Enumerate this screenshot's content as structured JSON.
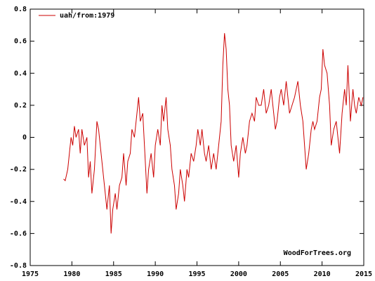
{
  "chart_data": {
    "type": "line",
    "series": [
      {
        "name": "uah/from:1979",
        "color": "#cc0000",
        "x": [
          1979.0,
          1979.2,
          1979.5,
          1979.7,
          1979.9,
          1980.1,
          1980.3,
          1980.5,
          1980.8,
          1981.0,
          1981.2,
          1981.5,
          1981.8,
          1982.0,
          1982.2,
          1982.4,
          1982.7,
          1983.0,
          1983.2,
          1983.5,
          1983.8,
          1984.0,
          1984.2,
          1984.5,
          1984.7,
          1984.9,
          1985.2,
          1985.4,
          1985.7,
          1986.0,
          1986.2,
          1986.5,
          1986.7,
          1987.0,
          1987.2,
          1987.5,
          1987.7,
          1988.0,
          1988.2,
          1988.5,
          1988.7,
          1989.0,
          1989.2,
          1989.5,
          1989.8,
          1990.0,
          1990.3,
          1990.6,
          1990.8,
          1991.0,
          1991.3,
          1991.5,
          1991.8,
          1992.0,
          1992.3,
          1992.5,
          1992.8,
          1993.0,
          1993.3,
          1993.5,
          1993.8,
          1994.0,
          1994.3,
          1994.6,
          1994.9,
          1995.1,
          1995.4,
          1995.6,
          1995.9,
          1996.1,
          1996.4,
          1996.7,
          1997.0,
          1997.3,
          1997.6,
          1997.9,
          1998.1,
          1998.3,
          1998.5,
          1998.7,
          1998.9,
          1999.1,
          1999.4,
          1999.7,
          2000.0,
          2000.2,
          2000.5,
          2000.8,
          2001.0,
          2001.3,
          2001.6,
          2001.9,
          2002.1,
          2002.4,
          2002.7,
          2003.0,
          2003.3,
          2003.6,
          2003.9,
          2004.1,
          2004.4,
          2004.6,
          2004.9,
          2005.1,
          2005.4,
          2005.7,
          2005.9,
          2006.1,
          2006.4,
          2006.7,
          2006.9,
          2007.1,
          2007.4,
          2007.7,
          2007.9,
          2008.1,
          2008.4,
          2008.7,
          2008.9,
          2009.1,
          2009.4,
          2009.7,
          2009.9,
          2010.1,
          2010.3,
          2010.6,
          2010.9,
          2011.1,
          2011.4,
          2011.7,
          2011.9,
          2012.1,
          2012.4,
          2012.7,
          2012.9,
          2013.1,
          2013.4,
          2013.7,
          2013.9,
          2014.1,
          2014.4,
          2014.7,
          2014.9
        ],
        "values": [
          -0.26,
          -0.27,
          -0.2,
          -0.1,
          0.0,
          -0.05,
          0.07,
          0.0,
          0.05,
          -0.1,
          0.05,
          -0.05,
          0.0,
          -0.25,
          -0.15,
          -0.35,
          -0.2,
          0.1,
          0.05,
          -0.1,
          -0.25,
          -0.35,
          -0.45,
          -0.3,
          -0.6,
          -0.45,
          -0.35,
          -0.45,
          -0.3,
          -0.25,
          -0.1,
          -0.3,
          -0.15,
          -0.1,
          0.05,
          0.0,
          0.1,
          0.25,
          0.1,
          0.15,
          -0.05,
          -0.35,
          -0.2,
          -0.1,
          -0.25,
          -0.05,
          0.05,
          -0.05,
          0.2,
          0.1,
          0.25,
          0.05,
          -0.05,
          -0.2,
          -0.3,
          -0.45,
          -0.35,
          -0.2,
          -0.3,
          -0.4,
          -0.2,
          -0.25,
          -0.1,
          -0.15,
          -0.05,
          0.05,
          -0.05,
          0.05,
          -0.1,
          -0.15,
          -0.05,
          -0.2,
          -0.1,
          -0.2,
          -0.05,
          0.1,
          0.45,
          0.65,
          0.55,
          0.3,
          0.2,
          -0.05,
          -0.15,
          -0.05,
          -0.25,
          -0.1,
          0.0,
          -0.1,
          -0.05,
          0.1,
          0.15,
          0.1,
          0.25,
          0.2,
          0.2,
          0.3,
          0.15,
          0.2,
          0.3,
          0.2,
          0.05,
          0.1,
          0.25,
          0.3,
          0.2,
          0.35,
          0.25,
          0.15,
          0.2,
          0.25,
          0.3,
          0.35,
          0.2,
          0.1,
          -0.05,
          -0.2,
          -0.1,
          0.05,
          0.1,
          0.05,
          0.1,
          0.25,
          0.3,
          0.55,
          0.45,
          0.4,
          0.2,
          -0.05,
          0.05,
          0.1,
          0.0,
          -0.1,
          0.15,
          0.3,
          0.2,
          0.45,
          0.1,
          0.3,
          0.2,
          0.15,
          0.25,
          0.2,
          0.25
        ]
      }
    ],
    "xlim": [
      1975,
      2015
    ],
    "xticks": [
      1975,
      1980,
      1985,
      1990,
      1995,
      2000,
      2005,
      2010,
      2015
    ],
    "ylim": [
      -0.8,
      0.8
    ],
    "yticks": [
      -0.8,
      -0.6,
      -0.4,
      -0.2,
      0,
      0.2,
      0.4,
      0.6,
      0.8
    ],
    "legend": "top-left",
    "annotation": "WoodForTrees.org"
  }
}
